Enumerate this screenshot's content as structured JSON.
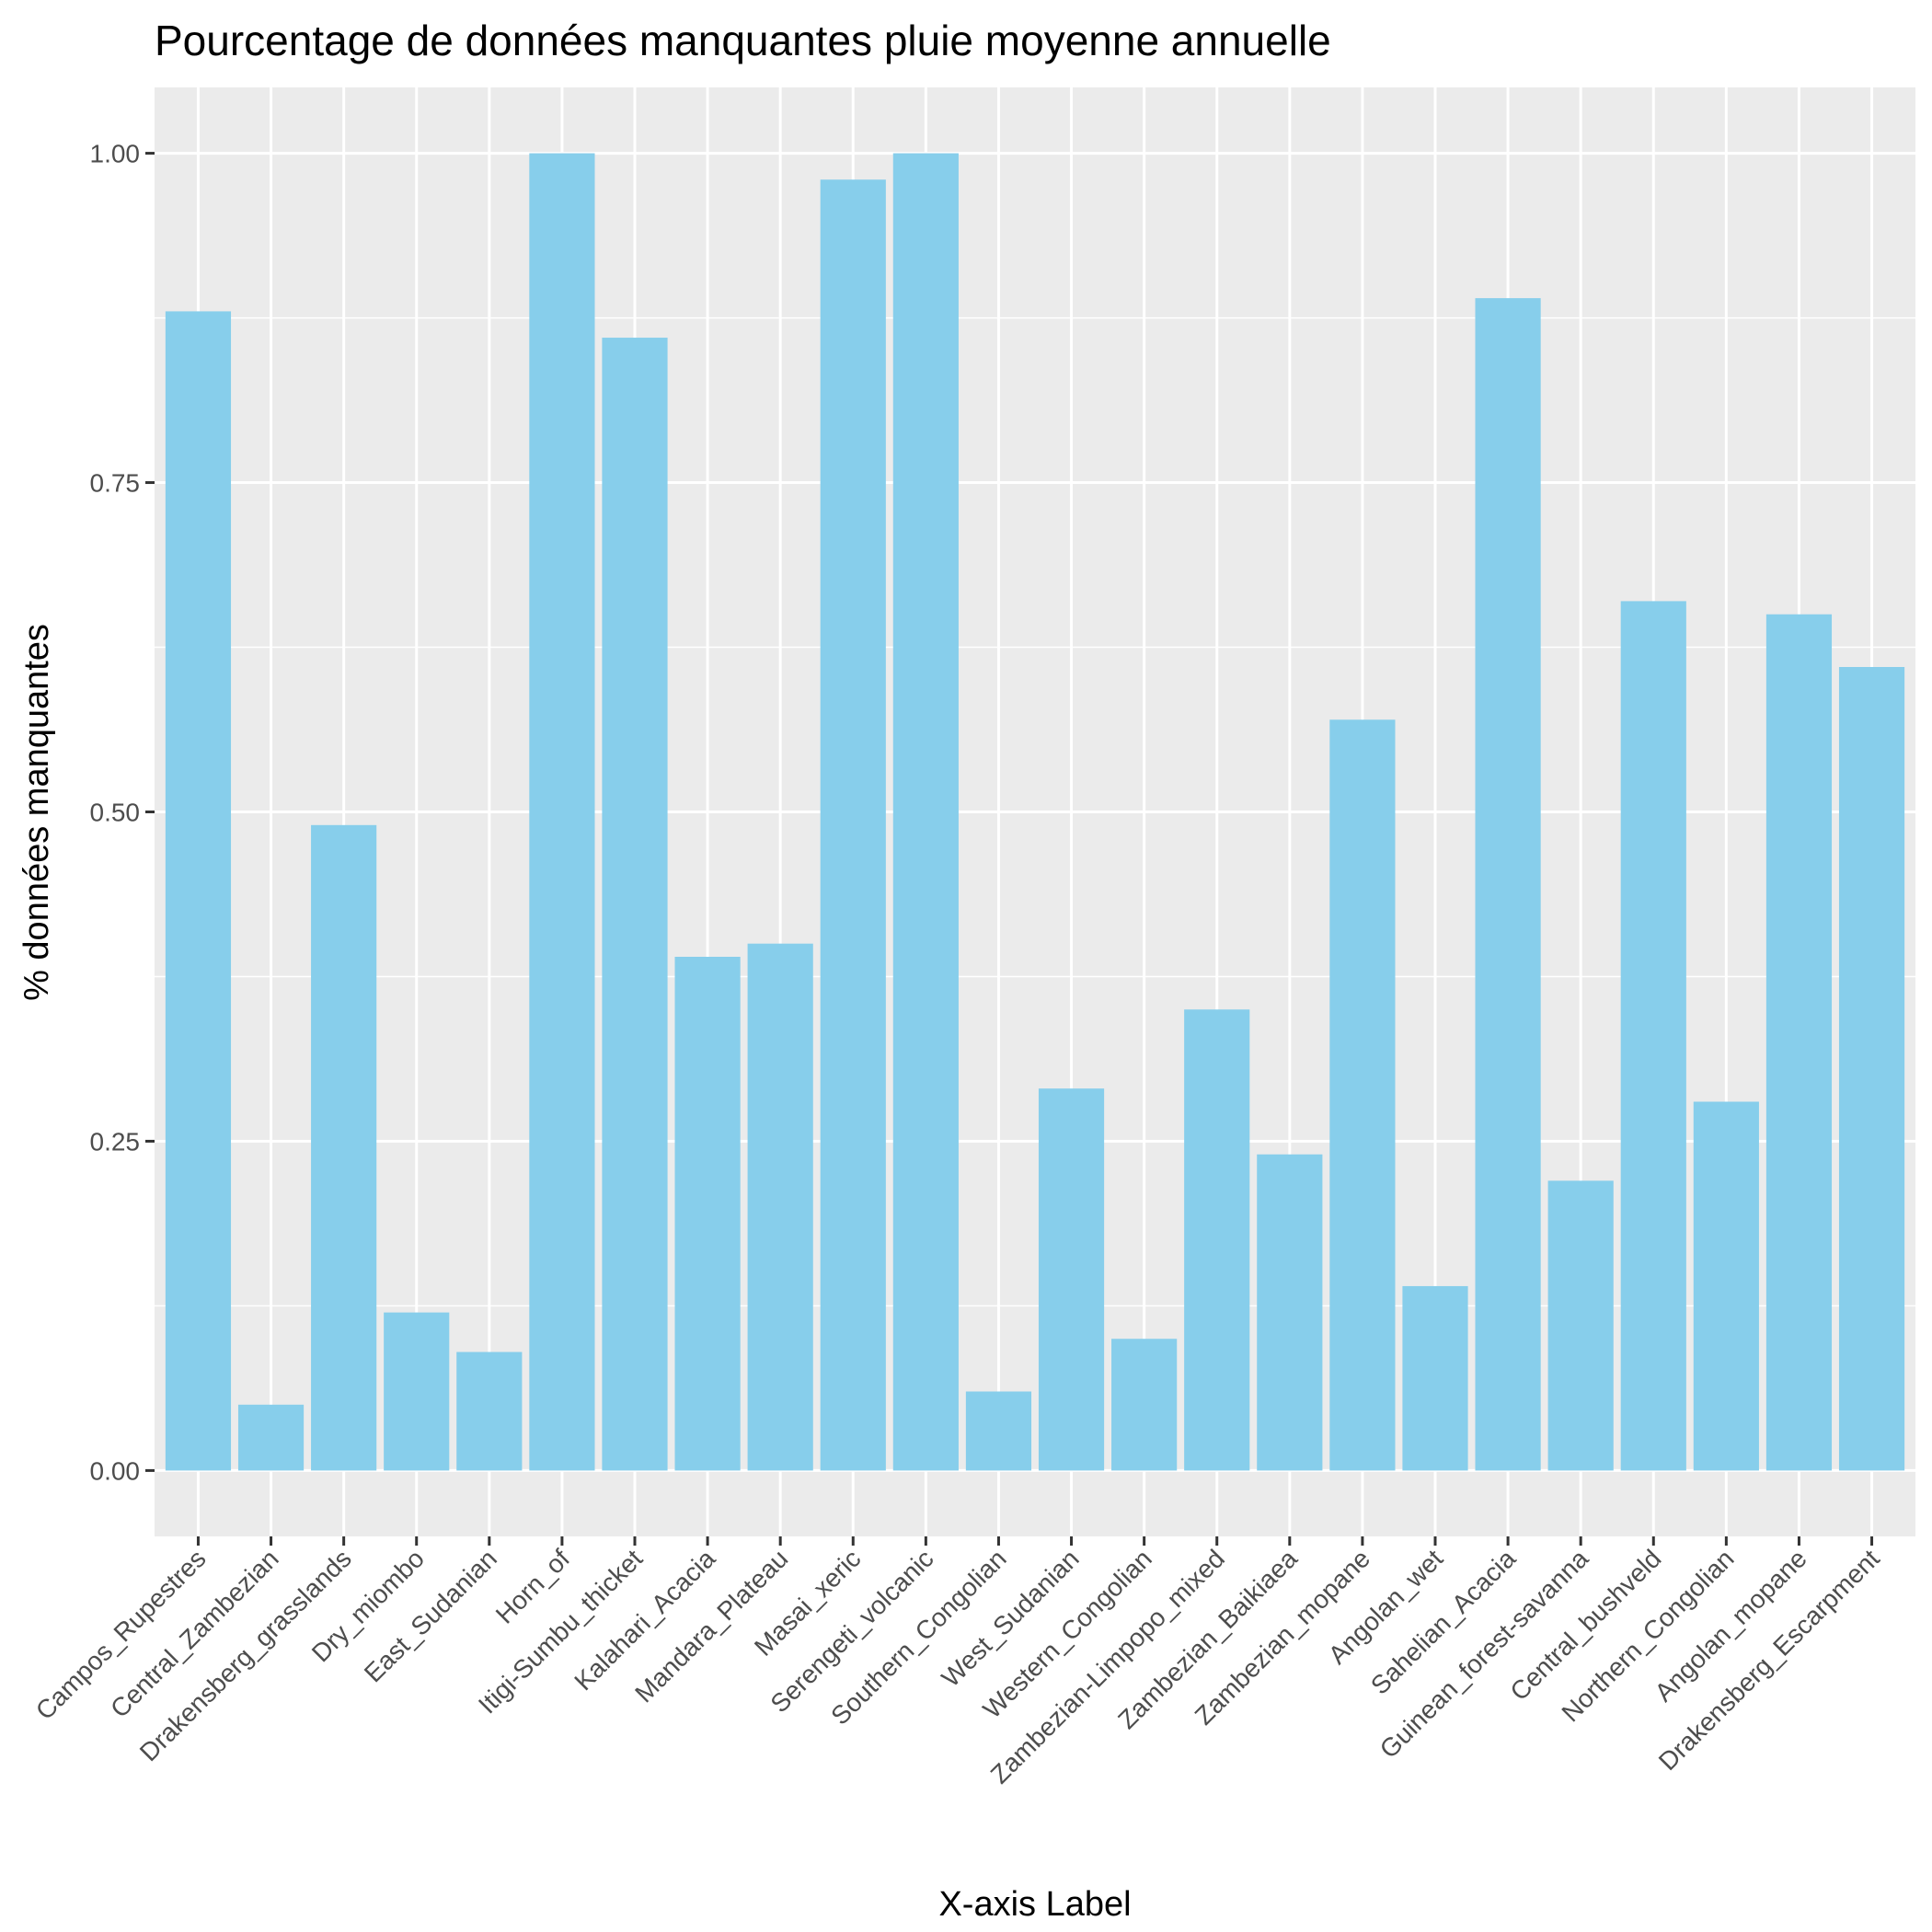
{
  "chart_data": {
    "type": "bar",
    "title": "Pourcentage de données manquantes pluie moyenne annuelle",
    "xlabel": "X-axis Label",
    "ylabel": "% données manquantes",
    "ylim": [
      -0.05,
      1.05
    ],
    "yticks": [
      0.0,
      0.25,
      0.5,
      0.75,
      1.0
    ],
    "ytick_labels": [
      "0.00",
      "0.25",
      "0.50",
      "0.75",
      "1.00"
    ],
    "grid": true,
    "legend": "none",
    "colors": {
      "bar": "#87CEEB",
      "panel": "#EBEBEB",
      "grid": "#FFFFFF",
      "tick": "#333333"
    },
    "categories": [
      "Campos_Rupestres",
      "Central_Zambezian",
      "Drakensberg_grasslands",
      "Dry_miombo",
      "East_Sudanian",
      "Horn_of",
      "Itigi-Sumbu_thicket",
      "Kalahari_Acacia",
      "Mandara_Plateau",
      "Masai_xeric",
      "Serengeti_volcanic",
      "Southern_Congolian",
      "West_Sudanian",
      "Western_Congolian",
      "Zambezian-Limpopo_mixed",
      "Zambezian_Baikiaea",
      "Zambezian_mopane",
      "Angolan_wet",
      "Sahelian_Acacia",
      "Guinean_forest-savanna",
      "Central_bushveld",
      "Northern_Congolian",
      "Angolan_mopane",
      "Drakensberg_Escarpment"
    ],
    "values": [
      0.88,
      0.05,
      0.49,
      0.12,
      0.09,
      1.0,
      0.86,
      0.39,
      0.4,
      0.98,
      1.0,
      0.06,
      0.29,
      0.1,
      0.35,
      0.24,
      0.57,
      0.14,
      0.89,
      0.22,
      0.66,
      0.28,
      0.65,
      0.61
    ]
  }
}
